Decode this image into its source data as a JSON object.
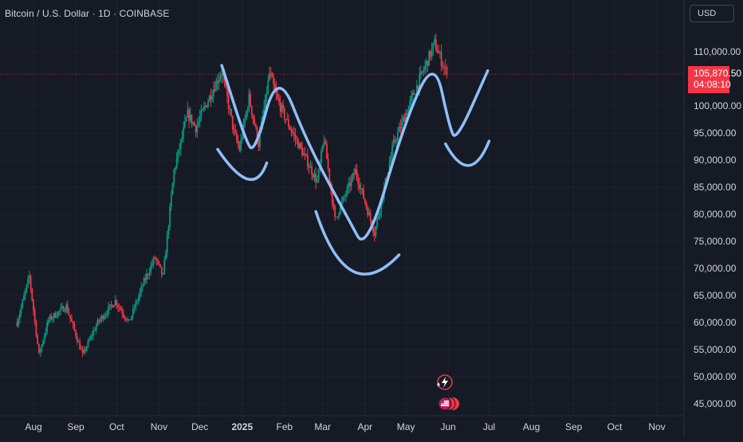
{
  "header": {
    "symbol_title": "Bitcoin / U.S. Dollar · 1D · COINBASE",
    "currency_button": "USD"
  },
  "price_tag": {
    "price": "105,870.50",
    "countdown": "04:08:10",
    "color": "#f23645"
  },
  "colors": {
    "background": "#161a25",
    "up_candle": "#089981",
    "down_candle": "#f23645",
    "drawing": "#90bff9",
    "grid": "#1f2330"
  },
  "chart_data": {
    "type": "candlestick",
    "title": "Bitcoin / U.S. Dollar · 1D · COINBASE",
    "y_axis": {
      "ticks": [
        110000,
        105000,
        100000,
        95000,
        90000,
        85000,
        80000,
        75000,
        70000,
        65000,
        60000,
        55000,
        50000,
        45000
      ],
      "tick_labels": [
        "110,000.00",
        "100,000.00",
        "95,000.00",
        "90,000.00",
        "85,000.00",
        "80,000.00",
        "75,000.00",
        "70,000.00",
        "65,000.00",
        "60,000.00",
        "55,000.00",
        "50,000.00",
        "45,000.00"
      ],
      "range": [
        43000,
        115000
      ]
    },
    "x_axis": {
      "tick_labels": [
        "Aug",
        "Sep",
        "Oct",
        "Nov",
        "Dec",
        "2025",
        "Feb",
        "Mar",
        "Apr",
        "May",
        "Jun",
        "Jul",
        "Aug",
        "Sep",
        "Oct",
        "Nov"
      ],
      "tick_dates": [
        "2024-08-01",
        "2024-09-01",
        "2024-10-01",
        "2024-11-01",
        "2024-12-01",
        "2025-01-01",
        "2025-02-01",
        "2025-03-01",
        "2025-04-01",
        "2025-05-01",
        "2025-06-01",
        "2025-07-01",
        "2025-08-01",
        "2025-09-01",
        "2025-10-01",
        "2025-11-01"
      ]
    },
    "last_price": 105870.5,
    "price_path": [
      [
        "2024-07-20",
        60000
      ],
      [
        "2024-07-29",
        68500
      ],
      [
        "2024-08-05",
        54000
      ],
      [
        "2024-08-12",
        60500
      ],
      [
        "2024-08-25",
        63000
      ],
      [
        "2024-09-06",
        54000
      ],
      [
        "2024-09-17",
        60000
      ],
      [
        "2024-09-30",
        64000
      ],
      [
        "2024-10-10",
        60000
      ],
      [
        "2024-10-21",
        67500
      ],
      [
        "2024-10-29",
        72000
      ],
      [
        "2024-11-04",
        68500
      ],
      [
        "2024-11-12",
        88000
      ],
      [
        "2024-11-22",
        98500
      ],
      [
        "2024-11-28",
        96000
      ],
      [
        "2024-12-05",
        100000
      ],
      [
        "2024-12-17",
        106500
      ],
      [
        "2024-12-26",
        95000
      ],
      [
        "2024-12-30",
        92000
      ],
      [
        "2025-01-06",
        101500
      ],
      [
        "2025-01-13",
        93000
      ],
      [
        "2025-01-21",
        106000
      ],
      [
        "2025-01-27",
        101000
      ],
      [
        "2025-02-03",
        97000
      ],
      [
        "2025-02-25",
        86000
      ],
      [
        "2025-03-02",
        94000
      ],
      [
        "2025-03-10",
        79000
      ],
      [
        "2025-03-25",
        88000
      ],
      [
        "2025-04-08",
        76500
      ],
      [
        "2025-04-22",
        93000
      ],
      [
        "2025-05-08",
        103000
      ],
      [
        "2025-05-22",
        111500
      ],
      [
        "2025-05-31",
        105870.5
      ]
    ],
    "annotations": [
      {
        "type": "freehand-drawing",
        "name": "zigzag-and-cup-pattern",
        "points": [
          [
            "2024-12-17",
            107500
          ],
          [
            "2025-01-03",
            94000
          ],
          [
            "2025-01-10",
            91000
          ],
          [
            "2025-01-27",
            107000
          ],
          [
            "2025-02-18",
            93000
          ],
          [
            "2025-03-20",
            79000
          ],
          [
            "2025-04-02",
            73000
          ],
          [
            "2025-04-30",
            97000
          ],
          [
            "2025-05-22",
            109000
          ],
          [
            "2025-06-02",
            96000
          ],
          [
            "2025-06-07",
            93500
          ],
          [
            "2025-06-30",
            106500
          ]
        ]
      },
      {
        "type": "freehand-drawing",
        "name": "arc-december",
        "points": [
          [
            "2024-12-14",
            92000
          ],
          [
            "2025-01-05",
            86500
          ],
          [
            "2025-01-19",
            89500
          ]
        ]
      },
      {
        "type": "freehand-drawing",
        "name": "arc-march-april",
        "points": [
          [
            "2025-02-24",
            80500
          ],
          [
            "2025-03-23",
            69500
          ],
          [
            "2025-04-26",
            72500
          ]
        ]
      },
      {
        "type": "freehand-drawing",
        "name": "arc-june",
        "points": [
          [
            "2025-05-30",
            93000
          ],
          [
            "2025-06-16",
            89000
          ],
          [
            "2025-07-01",
            93500
          ]
        ]
      }
    ],
    "grid": true,
    "legend": "none"
  }
}
